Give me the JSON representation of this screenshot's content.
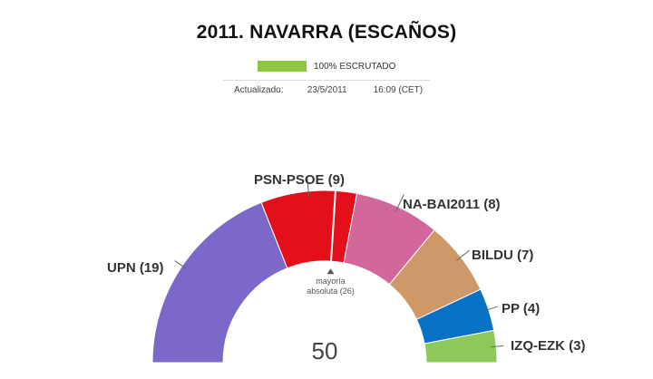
{
  "header": {
    "title": "2011. NAVARRA (ESCAÑOS)",
    "progress_label": "100% ESCRUTADO",
    "progress_value": 1.0,
    "updated_label": "Actualizado:",
    "updated_date": "23/5/2011",
    "updated_time": "16:09 (CET)"
  },
  "chart_data": {
    "type": "pie",
    "subtype": "parliament-semicircle",
    "title": "2011. NAVARRA (ESCAÑOS)",
    "total": 50,
    "total_label": "50",
    "majority": 26,
    "majority_label_line1": "mayoría",
    "majority_label_line2": "absoluta (26)",
    "series": [
      {
        "name": "UPN",
        "value": 19,
        "label": "UPN (19)",
        "color": "#7b68c9"
      },
      {
        "name": "PSN-PSOE",
        "value": 9,
        "label": "PSN-PSOE (9)",
        "color": "#e3101b"
      },
      {
        "name": "NA-BAI2011",
        "value": 8,
        "label": "NA-BAI2011 (8)",
        "color": "#d1679a"
      },
      {
        "name": "BILDU",
        "value": 7,
        "label": "BILDU (7)",
        "color": "#cf9868"
      },
      {
        "name": "PP",
        "value": 4,
        "label": "PP (4)",
        "color": "#0a72c4"
      },
      {
        "name": "IZQ-EZK",
        "value": 3,
        "label": "IZQ-EZK (3)",
        "color": "#8cc85a"
      }
    ]
  }
}
